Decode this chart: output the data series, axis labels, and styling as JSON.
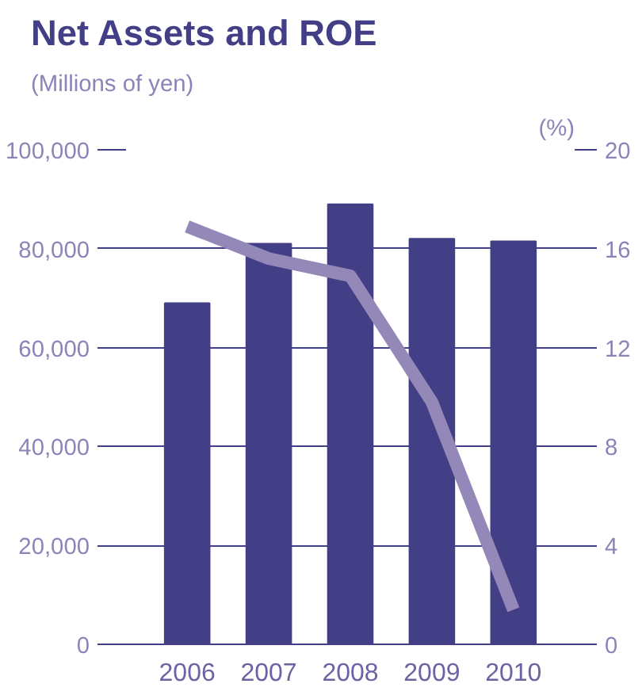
{
  "chart_data": {
    "type": "bar",
    "title": "Net Assets and ROE",
    "xlabel": null,
    "ylabel": "(Millions of yen)",
    "y2label": "(%)",
    "categories": [
      "2006",
      "2007",
      "2008",
      "2009",
      "2010"
    ],
    "series": [
      {
        "color": "#433f86",
        "values": [
          69000,
          81000,
          89000,
          82000,
          81500
        ]
      },
      {
        "type": "line",
        "axis": "y2",
        "color": "#9488b8",
        "values": [
          16.9,
          15.6,
          14.9,
          9.8,
          1.4
        ]
      }
    ],
    "ylim": [
      0,
      100000
    ],
    "yticks": [
      {
        "value": 0,
        "label": "0"
      },
      {
        "value": 20000,
        "label": "20,000"
      },
      {
        "value": 40000,
        "label": "40,000"
      },
      {
        "value": 60000,
        "label": "60,000"
      },
      {
        "value": 80000,
        "label": "80,000"
      },
      {
        "value": 100000,
        "label": "100,000"
      }
    ],
    "y2lim": [
      0,
      20
    ],
    "y2ticks": [
      0,
      4,
      8,
      12,
      16,
      20
    ],
    "grid": "y",
    "marker": "none",
    "line_style": "solid"
  }
}
